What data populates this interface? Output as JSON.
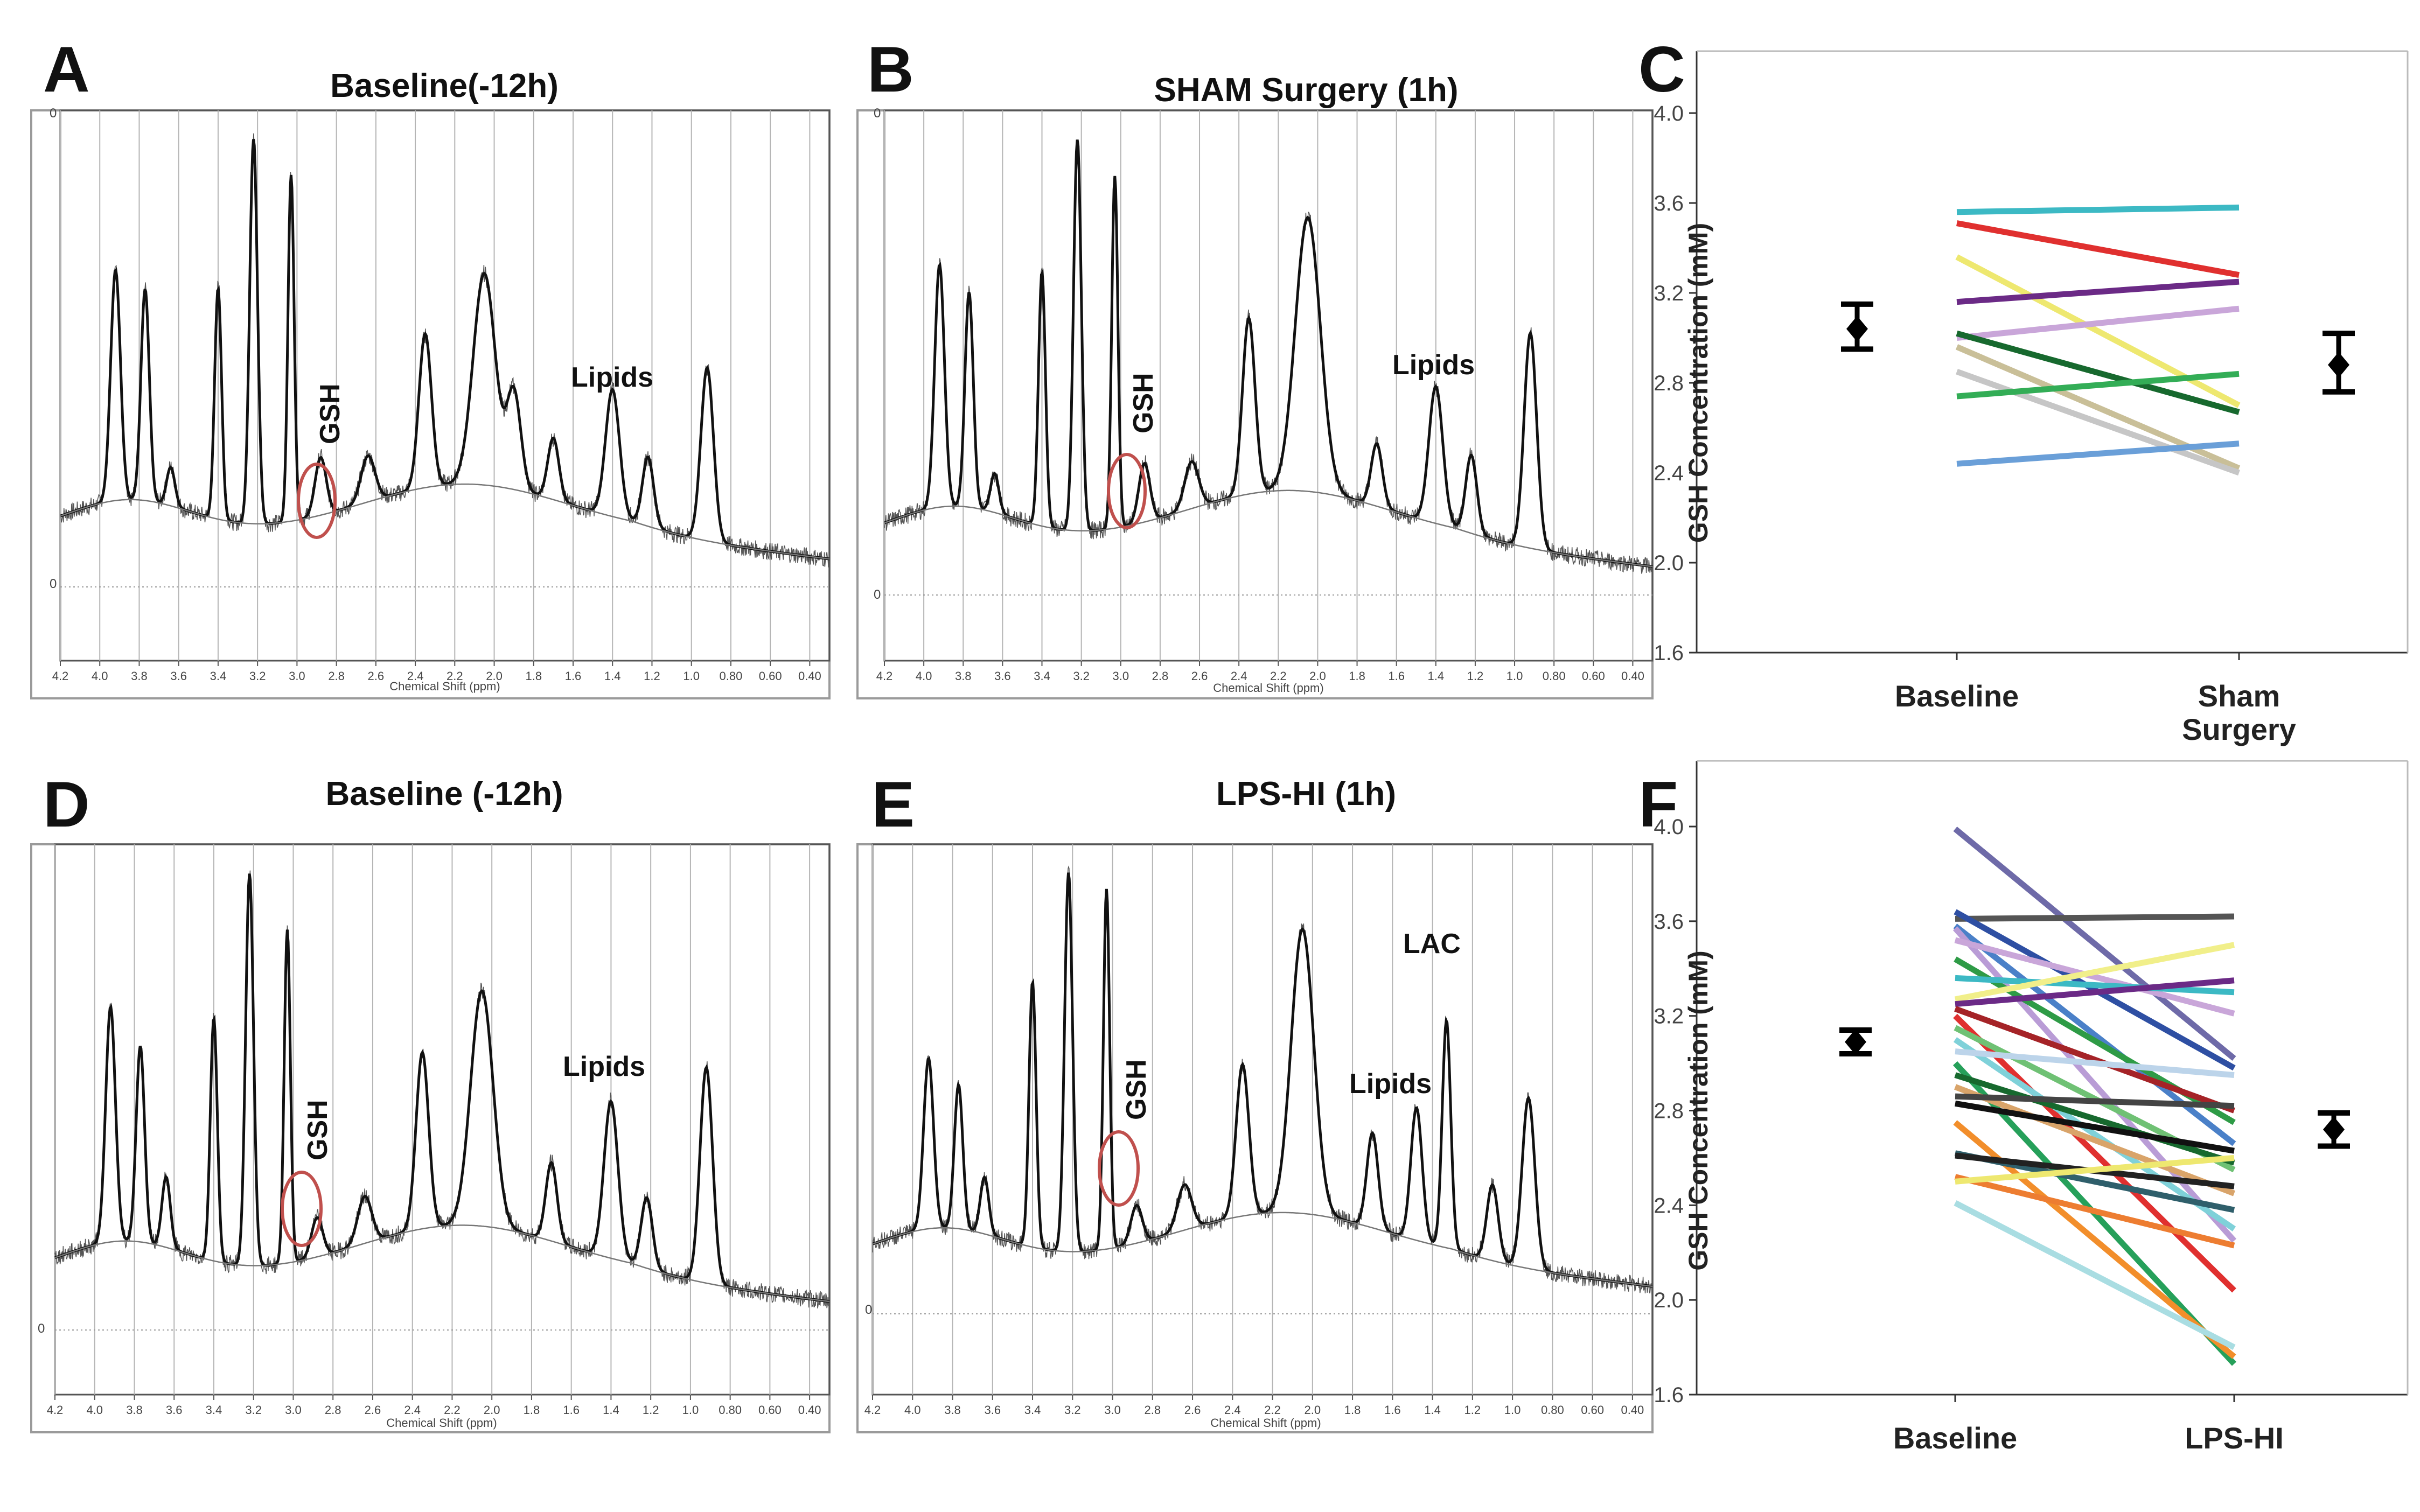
{
  "panels": [
    {
      "id": "A",
      "letter": "A",
      "title": "Baseline(-12h)",
      "xlabel": "Chemical Shift (ppm)",
      "annotations": [
        "GSH",
        "Lipids"
      ],
      "lac": false
    },
    {
      "id": "B",
      "letter": "B",
      "title": "SHAM Surgery  (1h)",
      "xlabel": "Chemical Shift (ppm)",
      "annotations": [
        "GSH",
        "Lipids"
      ],
      "lac": false
    },
    {
      "id": "D",
      "letter": "D",
      "title": "Baseline (-12h)",
      "xlabel": "Chemical Shift (ppm)",
      "annotations": [
        "GSH",
        "Lipids"
      ],
      "lac": false
    },
    {
      "id": "E",
      "letter": "E",
      "title": "LPS-HI (1h)",
      "xlabel": "Chemical Shift (ppm)",
      "annotations": [
        "GSH",
        "Lipids",
        "LAC"
      ],
      "lac": true
    }
  ],
  "spectrum_ticks": [
    "4.2",
    "4.0",
    "3.8",
    "3.6",
    "3.4",
    "3.2",
    "3.0",
    "2.8",
    "2.6",
    "2.4",
    "2.2",
    "2.0",
    "1.8",
    "1.6",
    "1.4",
    "1.2",
    "1.0",
    "0.80",
    "0.60",
    "0.40"
  ],
  "spectrum_axis_markers": [
    "0",
    "0"
  ],
  "chart_data": [
    {
      "type": "spectrum",
      "panel": "A",
      "title": "Baseline(-12h)",
      "xlabel": "Chemical Shift (ppm)",
      "xlim": [
        4.2,
        0.3
      ],
      "peaks_ppm": [
        3.92,
        3.77,
        3.4,
        3.22,
        3.03,
        2.35,
        2.05,
        1.4,
        0.92
      ],
      "annotations": [
        "GSH",
        "Lipids"
      ]
    },
    {
      "type": "spectrum",
      "panel": "B",
      "title": "SHAM Surgery  (1h)",
      "xlabel": "Chemical Shift (ppm)",
      "xlim": [
        4.2,
        0.3
      ],
      "peaks_ppm": [
        3.92,
        3.77,
        3.4,
        3.22,
        3.03,
        2.35,
        2.05,
        1.4,
        0.92
      ],
      "annotations": [
        "GSH",
        "Lipids"
      ]
    },
    {
      "type": "line",
      "panel": "C",
      "ylabel": "GSH Concentration (mM)",
      "categories": [
        "Baseline",
        "Sham Surgery"
      ],
      "ylim": [
        1.6,
        4.2
      ],
      "yticks": [
        "1.6",
        "2.0",
        "2.4",
        "2.8",
        "3.2",
        "3.6",
        "4.0"
      ],
      "series": [
        {
          "name": "s1",
          "color": "#3cb9c4",
          "values": [
            3.56,
            3.58
          ]
        },
        {
          "name": "s2",
          "color": "#e0302f",
          "values": [
            3.51,
            3.28
          ]
        },
        {
          "name": "s3",
          "color": "#eee870",
          "values": [
            3.36,
            2.7
          ]
        },
        {
          "name": "s4",
          "color": "#6b2a86",
          "values": [
            3.16,
            3.25
          ]
        },
        {
          "name": "s5",
          "color": "#c9a6d9",
          "values": [
            3.0,
            3.13
          ]
        },
        {
          "name": "s6",
          "color": "#17692e",
          "values": [
            3.02,
            2.67
          ]
        },
        {
          "name": "s7",
          "color": "#c9bf98",
          "values": [
            2.96,
            2.42
          ]
        },
        {
          "name": "s8",
          "color": "#c6c6c6",
          "values": [
            2.85,
            2.4
          ]
        },
        {
          "name": "s9",
          "color": "#33ad56",
          "values": [
            2.74,
            2.84
          ]
        },
        {
          "name": "s10",
          "color": "#6a9fd8",
          "values": [
            2.44,
            2.53
          ]
        }
      ],
      "summary": [
        {
          "category": "Baseline",
          "mean": 3.04,
          "low": 2.95,
          "high": 3.15
        },
        {
          "category": "Sham Surgery",
          "mean": 2.88,
          "low": 2.76,
          "high": 3.02
        }
      ]
    },
    {
      "type": "spectrum",
      "panel": "D",
      "title": "Baseline (-12h)",
      "xlabel": "Chemical Shift (ppm)",
      "xlim": [
        4.2,
        0.3
      ],
      "peaks_ppm": [
        3.92,
        3.77,
        3.4,
        3.22,
        3.03,
        2.35,
        2.05,
        1.4,
        0.92
      ],
      "annotations": [
        "GSH",
        "Lipids"
      ]
    },
    {
      "type": "spectrum",
      "panel": "E",
      "title": "LPS-HI (1h)",
      "xlabel": "Chemical Shift (ppm)",
      "xlim": [
        4.2,
        0.3
      ],
      "peaks_ppm": [
        3.92,
        3.77,
        3.4,
        3.22,
        3.03,
        2.35,
        2.05,
        1.33,
        0.92
      ],
      "annotations": [
        "GSH",
        "Lipids",
        "LAC"
      ]
    },
    {
      "type": "line",
      "panel": "F",
      "ylabel": "GSH Concentration (mM)",
      "categories": [
        "Baseline",
        "LPS-HI"
      ],
      "ylim": [
        1.6,
        4.2
      ],
      "yticks": [
        "1.6",
        "2.0",
        "2.4",
        "2.8",
        "3.2",
        "3.6",
        "4.0"
      ],
      "series": [
        {
          "name": "f1",
          "color": "#6e6aa8",
          "values": [
            3.99,
            3.02
          ]
        },
        {
          "name": "f2",
          "color": "#555555",
          "values": [
            3.61,
            3.62
          ]
        },
        {
          "name": "f3",
          "color": "#2e4fa3",
          "values": [
            3.64,
            2.98
          ]
        },
        {
          "name": "f4",
          "color": "#4a80c8",
          "values": [
            3.58,
            2.66
          ]
        },
        {
          "name": "f5",
          "color": "#b99cd6",
          "values": [
            3.57,
            2.25
          ]
        },
        {
          "name": "f6",
          "color": "#c9a6d9",
          "values": [
            3.52,
            3.21
          ]
        },
        {
          "name": "f7",
          "color": "#2e9b46",
          "values": [
            3.44,
            2.75
          ]
        },
        {
          "name": "f8",
          "color": "#3cb9c4",
          "values": [
            3.36,
            3.3
          ]
        },
        {
          "name": "f9",
          "color": "#f1ef8a",
          "values": [
            3.27,
            3.5
          ]
        },
        {
          "name": "f10",
          "color": "#6b2a86",
          "values": [
            3.25,
            3.35
          ]
        },
        {
          "name": "f11",
          "color": "#a52327",
          "values": [
            3.23,
            2.8
          ]
        },
        {
          "name": "f12",
          "color": "#e0302f",
          "values": [
            3.2,
            2.04
          ]
        },
        {
          "name": "f13",
          "color": "#6fc174",
          "values": [
            3.15,
            2.55
          ]
        },
        {
          "name": "f14",
          "color": "#7fd1d9",
          "values": [
            3.1,
            2.3
          ]
        },
        {
          "name": "f15",
          "color": "#bcd4ea",
          "values": [
            3.05,
            2.95
          ]
        },
        {
          "name": "f16",
          "color": "#26a05a",
          "values": [
            3.0,
            1.73
          ]
        },
        {
          "name": "f17",
          "color": "#17692e",
          "values": [
            2.95,
            2.58
          ]
        },
        {
          "name": "f18",
          "color": "#d9a46a",
          "values": [
            2.9,
            2.45
          ]
        },
        {
          "name": "f19",
          "color": "#444444",
          "values": [
            2.86,
            2.82
          ]
        },
        {
          "name": "f20",
          "color": "#111111",
          "values": [
            2.83,
            2.63
          ]
        },
        {
          "name": "f21",
          "color": "#f28e2b",
          "values": [
            2.75,
            1.76
          ]
        },
        {
          "name": "f22",
          "color": "#2f5f6b",
          "values": [
            2.62,
            2.38
          ]
        },
        {
          "name": "f23",
          "color": "#222222",
          "values": [
            2.61,
            2.48
          ]
        },
        {
          "name": "f24",
          "color": "#ed7d31",
          "values": [
            2.52,
            2.23
          ]
        },
        {
          "name": "f25",
          "color": "#eee870",
          "values": [
            2.5,
            2.6
          ]
        },
        {
          "name": "f26",
          "color": "#a9dde2",
          "values": [
            2.41,
            1.8
          ]
        }
      ],
      "summary": [
        {
          "category": "Baseline",
          "mean": 3.09,
          "low": 3.04,
          "high": 3.14
        },
        {
          "category": "LPS-HI",
          "mean": 2.72,
          "low": 2.65,
          "high": 2.79
        }
      ]
    }
  ],
  "styles": {
    "circle_color": "#c0504d",
    "spectrum_color": "#111111",
    "baseline_color": "#777777",
    "grid_color": "#b5b5b5"
  }
}
